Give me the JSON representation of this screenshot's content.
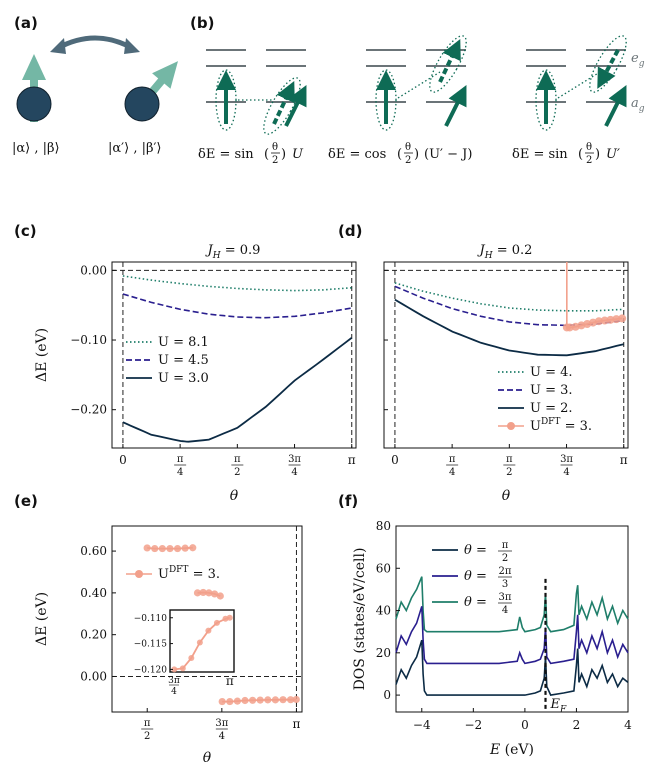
{
  "colors": {
    "navy": "#0c2b45",
    "indigo": "#2a1f8f",
    "teal": "#1f7e6a",
    "salmon": "#f2a08b",
    "arrow": "#0e6b55",
    "arrow_light": "#74b7a5",
    "spin": "#24465f",
    "level": "#6b7478",
    "dashed": "#222222"
  },
  "panel_labels": [
    "(a)",
    "(b)",
    "(c)",
    "(d)",
    "(e)",
    "(f)"
  ],
  "diagram": {
    "state_left": "|α⟩ , |β⟩",
    "state_right": "|α′⟩ , |β′⟩",
    "level_eg": "e",
    "level_eg_sub": "g",
    "level_ag": "a",
    "level_ag_sub": "g",
    "eq1": {
      "pre": "δE = sin",
      "arg_num": "θ",
      "arg_den": "2",
      "post": "U"
    },
    "eq2": {
      "pre": "δE = cos",
      "arg_num": "θ",
      "arg_den": "2",
      "post": "(U′ − J)"
    },
    "eq3": {
      "pre": "δE = sin",
      "arg_num": "θ",
      "arg_den": "2",
      "post": "U′"
    }
  },
  "pi_ticks": [
    {
      "num": "",
      "den": "",
      "label": "0"
    },
    {
      "num": "π",
      "den": "4",
      "label": ""
    },
    {
      "num": "π",
      "den": "2",
      "label": ""
    },
    {
      "num": "3π",
      "den": "4",
      "label": ""
    },
    {
      "num": "",
      "den": "",
      "label": "π"
    }
  ],
  "chart_data": [
    {
      "panel": "c",
      "type": "line",
      "title": "J_H = 0.9",
      "title_main": "J",
      "title_sub": "H",
      "title_rest": " = 0.9",
      "xlabel": "θ",
      "ylabel": "ΔE (eV)",
      "xlim": [
        -0.15,
        3.2
      ],
      "ylim": [
        -0.255,
        0.012
      ],
      "yticks": [
        "0.00",
        "−0.10",
        "−0.20"
      ],
      "ytick_values": [
        0.0,
        -0.1,
        -0.2
      ],
      "legend_position": "center-left",
      "series": [
        {
          "name": "U = 8.1",
          "style": "dotted",
          "color": "teal",
          "x": [
            0,
            0.39,
            0.79,
            1.18,
            1.57,
            1.96,
            2.36,
            2.75,
            3.14
          ],
          "y": [
            -0.008,
            -0.014,
            -0.019,
            -0.023,
            -0.026,
            -0.028,
            -0.029,
            -0.028,
            -0.025
          ]
        },
        {
          "name": "U = 4.5",
          "style": "dashed",
          "color": "indigo",
          "x": [
            0,
            0.39,
            0.79,
            1.18,
            1.57,
            1.96,
            2.36,
            2.75,
            3.14
          ],
          "y": [
            -0.034,
            -0.046,
            -0.056,
            -0.063,
            -0.067,
            -0.068,
            -0.066,
            -0.061,
            -0.054
          ]
        },
        {
          "name": "U = 3.0",
          "style": "solid",
          "color": "navy",
          "x": [
            0,
            0.39,
            0.79,
            0.9,
            1.18,
            1.57,
            1.96,
            2.36,
            2.75,
            3.14
          ],
          "y": [
            -0.218,
            -0.236,
            -0.245,
            -0.246,
            -0.243,
            -0.226,
            -0.196,
            -0.158,
            -0.128,
            -0.097
          ]
        }
      ]
    },
    {
      "panel": "d",
      "type": "line",
      "title": "J_H = 0.2",
      "title_main": "J",
      "title_sub": "H",
      "title_rest": " = 0.2",
      "xlabel": "θ",
      "ylim": [
        -0.255,
        0.012
      ],
      "xlim": [
        -0.15,
        3.2
      ],
      "legend_position": "lower-right",
      "series": [
        {
          "name": "U = 4.",
          "style": "dotted",
          "color": "teal",
          "x": [
            0,
            0.39,
            0.79,
            1.18,
            1.57,
            1.96,
            2.36,
            2.75,
            3.14
          ],
          "y": [
            -0.018,
            -0.03,
            -0.04,
            -0.048,
            -0.054,
            -0.057,
            -0.058,
            -0.058,
            -0.056
          ]
        },
        {
          "name": "U = 3.",
          "style": "dashed",
          "color": "indigo",
          "x": [
            0,
            0.39,
            0.79,
            1.18,
            1.57,
            1.96,
            2.36,
            2.75,
            3.14
          ],
          "y": [
            -0.023,
            -0.04,
            -0.055,
            -0.066,
            -0.074,
            -0.078,
            -0.079,
            -0.077,
            -0.072
          ]
        },
        {
          "name": "U = 2.",
          "style": "solid",
          "color": "navy",
          "x": [
            0,
            0.39,
            0.79,
            1.18,
            1.57,
            1.96,
            2.36,
            2.75,
            3.14
          ],
          "y": [
            -0.042,
            -0.066,
            -0.088,
            -0.104,
            -0.115,
            -0.121,
            -0.122,
            -0.116,
            -0.106
          ]
        },
        {
          "name": "U^DFT = 3.",
          "name_main": "U",
          "name_sup": "DFT",
          "name_rest": " = 3.",
          "style": "markers",
          "color": "salmon",
          "x": [
            2.36,
            2.4,
            2.48,
            2.56,
            2.64,
            2.72,
            2.8,
            2.88,
            2.96,
            3.04,
            3.12
          ],
          "y": [
            -0.082,
            -0.082,
            -0.081,
            -0.079,
            -0.077,
            -0.075,
            -0.073,
            -0.072,
            -0.071,
            -0.07,
            -0.069
          ],
          "jump_x": 2.36
        }
      ]
    },
    {
      "panel": "e",
      "type": "scatter",
      "xlabel": "θ",
      "ylabel": "ΔE (eV)",
      "xlim": [
        1.2,
        3.2
      ],
      "ylim": [
        -0.17,
        0.72
      ],
      "yticks": [
        "0.60",
        "0.40",
        "0.20",
        "0.00"
      ],
      "ytick_values": [
        0.6,
        0.4,
        0.2,
        0.0
      ],
      "legend_position": "upper-left",
      "series": [
        {
          "name": "U^DFT = 3.",
          "name_main": "U",
          "name_sup": "DFT",
          "name_rest": " = 3.",
          "color": "salmon",
          "x": [
            1.57,
            1.65,
            1.73,
            1.81,
            1.89,
            1.97,
            2.05
          ],
          "y": [
            0.615,
            0.612,
            0.612,
            0.612,
            0.612,
            0.614,
            0.616
          ]
        },
        {
          "name": "",
          "color": "salmon",
          "x": [
            2.1,
            2.16,
            2.22,
            2.28,
            2.34
          ],
          "y": [
            0.4,
            0.402,
            0.4,
            0.395,
            0.385
          ]
        },
        {
          "name": "",
          "color": "salmon",
          "x": [
            2.36,
            2.44,
            2.52,
            2.6,
            2.68,
            2.76,
            2.84,
            2.92,
            3.0,
            3.08,
            3.14
          ],
          "y": [
            -0.12,
            -0.12,
            -0.118,
            -0.115,
            -0.114,
            -0.113,
            -0.112,
            -0.112,
            -0.111,
            -0.111,
            -0.11
          ]
        }
      ],
      "inset": {
        "xlim": [
          2.3,
          3.2
        ],
        "ylim": [
          -0.1205,
          -0.1085
        ],
        "yticks": [
          "−0.110",
          "−0.115",
          "−0.120"
        ],
        "ytick_values": [
          -0.11,
          -0.115,
          -0.12
        ],
        "x": [
          2.36,
          2.48,
          2.6,
          2.72,
          2.84,
          2.96,
          3.08,
          3.14
        ],
        "y": [
          -0.12,
          -0.1198,
          -0.1178,
          -0.1148,
          -0.1125,
          -0.111,
          -0.1102,
          -0.11
        ]
      }
    },
    {
      "panel": "f",
      "type": "line",
      "xlabel": "E (eV)",
      "xlabel_main": "E",
      "xlabel_rest": " (eV)",
      "ylabel": "DOS (states/eV/cell)",
      "xlim": [
        -5,
        4
      ],
      "ylim": [
        -8,
        80
      ],
      "xticks": [
        "−4",
        "−2",
        "0",
        "2",
        "4"
      ],
      "xtick_values": [
        -4,
        -2,
        0,
        2,
        4
      ],
      "yticks": [
        "0",
        "20",
        "40",
        "60",
        "80"
      ],
      "ytick_values": [
        0,
        20,
        40,
        60,
        80
      ],
      "fermi_label": "E_F",
      "fermi_main": "E",
      "fermi_sub": "F",
      "fermi_x": 0.8,
      "legend_position": "top-right",
      "series": [
        {
          "name": "θ = π/2",
          "label_main": "θ = ",
          "num": "π",
          "den": "2",
          "color": "navy",
          "x": [
            -5,
            -4.8,
            -4.6,
            -4.4,
            -4.2,
            -4.1,
            -4.0,
            -3.95,
            -3.9,
            -3.8,
            -3.6,
            -3.0,
            -2.0,
            -1.0,
            -0.2,
            0.0,
            0.4,
            0.6,
            0.75,
            0.8,
            0.85,
            1.0,
            1.5,
            1.9,
            2.0,
            2.05,
            2.1,
            2.2,
            2.4,
            2.6,
            2.8,
            3.0,
            3.2,
            3.4,
            3.6,
            3.8,
            4.0
          ],
          "y": [
            5,
            12,
            8,
            14,
            18,
            22,
            26,
            10,
            2,
            0,
            0,
            0,
            0,
            0,
            0,
            0,
            1,
            2,
            8,
            18,
            4,
            0,
            1,
            2,
            14,
            22,
            6,
            10,
            4,
            12,
            8,
            14,
            6,
            10,
            4,
            8,
            6
          ]
        },
        {
          "name": "θ = 2π/3",
          "label_main": "θ = ",
          "num": "2π",
          "den": "3",
          "color": "indigo",
          "x": [
            -5,
            -4.8,
            -4.6,
            -4.4,
            -4.2,
            -4.1,
            -4.0,
            -3.95,
            -3.9,
            -3.8,
            -3.6,
            -3.0,
            -2.0,
            -1.0,
            -0.3,
            -0.2,
            -0.1,
            0.0,
            0.4,
            0.6,
            0.75,
            0.8,
            0.85,
            1.0,
            1.5,
            1.9,
            2.0,
            2.05,
            2.1,
            2.2,
            2.4,
            2.6,
            2.8,
            3.0,
            3.2,
            3.4,
            3.6,
            3.8,
            4.0
          ],
          "y": [
            20,
            28,
            24,
            30,
            34,
            38,
            42,
            26,
            17,
            15,
            15,
            15,
            15,
            15,
            16,
            20,
            17,
            15,
            16,
            17,
            22,
            32,
            18,
            15,
            16,
            17,
            30,
            38,
            22,
            26,
            20,
            28,
            22,
            30,
            20,
            26,
            18,
            24,
            20
          ]
        },
        {
          "name": "θ = 3π/4",
          "label_main": "θ = ",
          "num": "3π",
          "den": "4",
          "color": "teal",
          "x": [
            -5,
            -4.8,
            -4.6,
            -4.4,
            -4.2,
            -4.1,
            -4.0,
            -3.95,
            -3.9,
            -3.8,
            -3.6,
            -3.0,
            -2.0,
            -1.0,
            -0.3,
            -0.2,
            -0.1,
            0.0,
            0.4,
            0.6,
            0.75,
            0.8,
            0.85,
            1.0,
            1.5,
            1.9,
            2.0,
            2.05,
            2.1,
            2.2,
            2.4,
            2.6,
            2.8,
            3.0,
            3.2,
            3.4,
            3.6,
            3.8,
            4.0
          ],
          "y": [
            36,
            44,
            40,
            46,
            50,
            53,
            56,
            40,
            31,
            30,
            30,
            30,
            30,
            30,
            31,
            37,
            32,
            30,
            31,
            32,
            38,
            48,
            33,
            30,
            31,
            33,
            48,
            52,
            38,
            42,
            36,
            44,
            38,
            46,
            36,
            42,
            34,
            40,
            36
          ]
        }
      ]
    }
  ]
}
